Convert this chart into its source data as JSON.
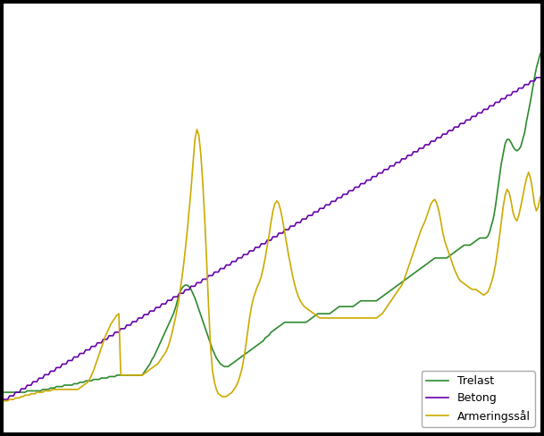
{
  "title": "",
  "background_color": "#000000",
  "plot_bg_color": "#ffffff",
  "grid_color": "#d0d0d0",
  "colors": {
    "trelast": "#2d8a2d",
    "betong": "#6600aa",
    "armeringstal": "#ccaa00"
  },
  "legend_labels": [
    "Trelast",
    "Betong",
    "Armeringssål"
  ],
  "ylim": [
    60,
    360
  ],
  "line_width": 1.2,
  "legend_fontsize": 9
}
